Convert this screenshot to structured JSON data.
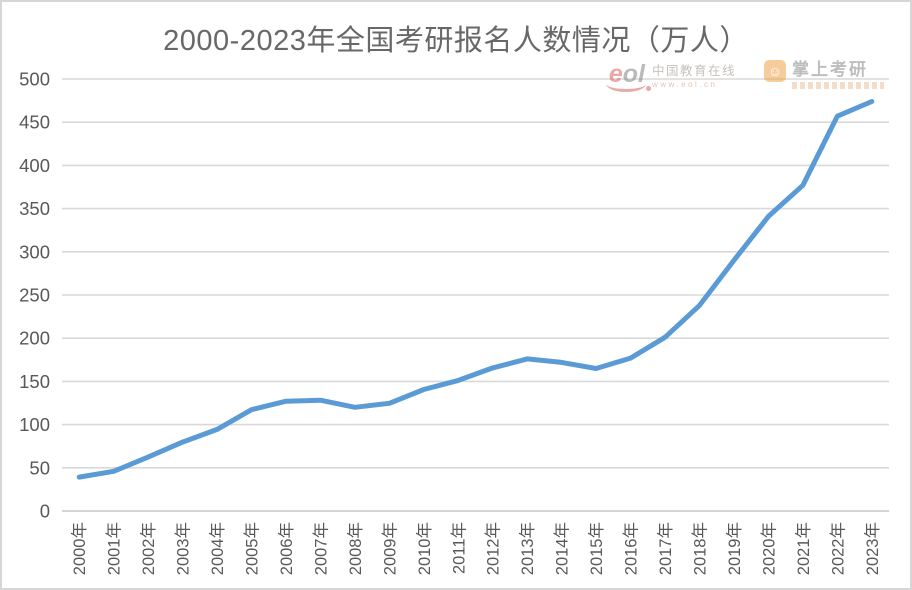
{
  "page": {
    "background": "#ffffff",
    "border_color": "#d6d6d6"
  },
  "watermarks": {
    "eol": {
      "logo_text": "eol",
      "name": "中国教育在线",
      "url": "www.eol.cn",
      "accent": "#d9534f"
    },
    "kaoyan": {
      "icon": "☺",
      "name": "掌上考研",
      "accent": "#f09a3e"
    }
  },
  "chart_data": {
    "type": "line",
    "title": "2000-2023年全国考研报名人数情况（万人）",
    "categories": [
      "2000年",
      "2001年",
      "2002年",
      "2003年",
      "2004年",
      "2005年",
      "2006年",
      "2007年",
      "2008年",
      "2009年",
      "2010年",
      "2011年",
      "2012年",
      "2013年",
      "2014年",
      "2015年",
      "2016年",
      "2017年",
      "2018年",
      "2019年",
      "2020年",
      "2021年",
      "2022年",
      "2023年"
    ],
    "values": [
      39.2,
      46,
      62.4,
      79.7,
      94.5,
      117.2,
      127.1,
      128.2,
      120,
      124.6,
      140.6,
      151.1,
      165.6,
      176,
      172,
      164.9,
      177,
      201,
      238,
      290,
      341,
      377,
      457,
      474
    ],
    "ylim": [
      0,
      500
    ],
    "y_ticks": [
      0,
      50,
      100,
      150,
      200,
      250,
      300,
      350,
      400,
      450,
      500
    ],
    "grid": true,
    "legend": "none",
    "xlabel": "",
    "ylabel": "",
    "line_color": "#5b9bd5",
    "grid_color": "#d9d9d9",
    "axis_line_color": "#c6c6c6",
    "axis_text_color": "#595959"
  }
}
